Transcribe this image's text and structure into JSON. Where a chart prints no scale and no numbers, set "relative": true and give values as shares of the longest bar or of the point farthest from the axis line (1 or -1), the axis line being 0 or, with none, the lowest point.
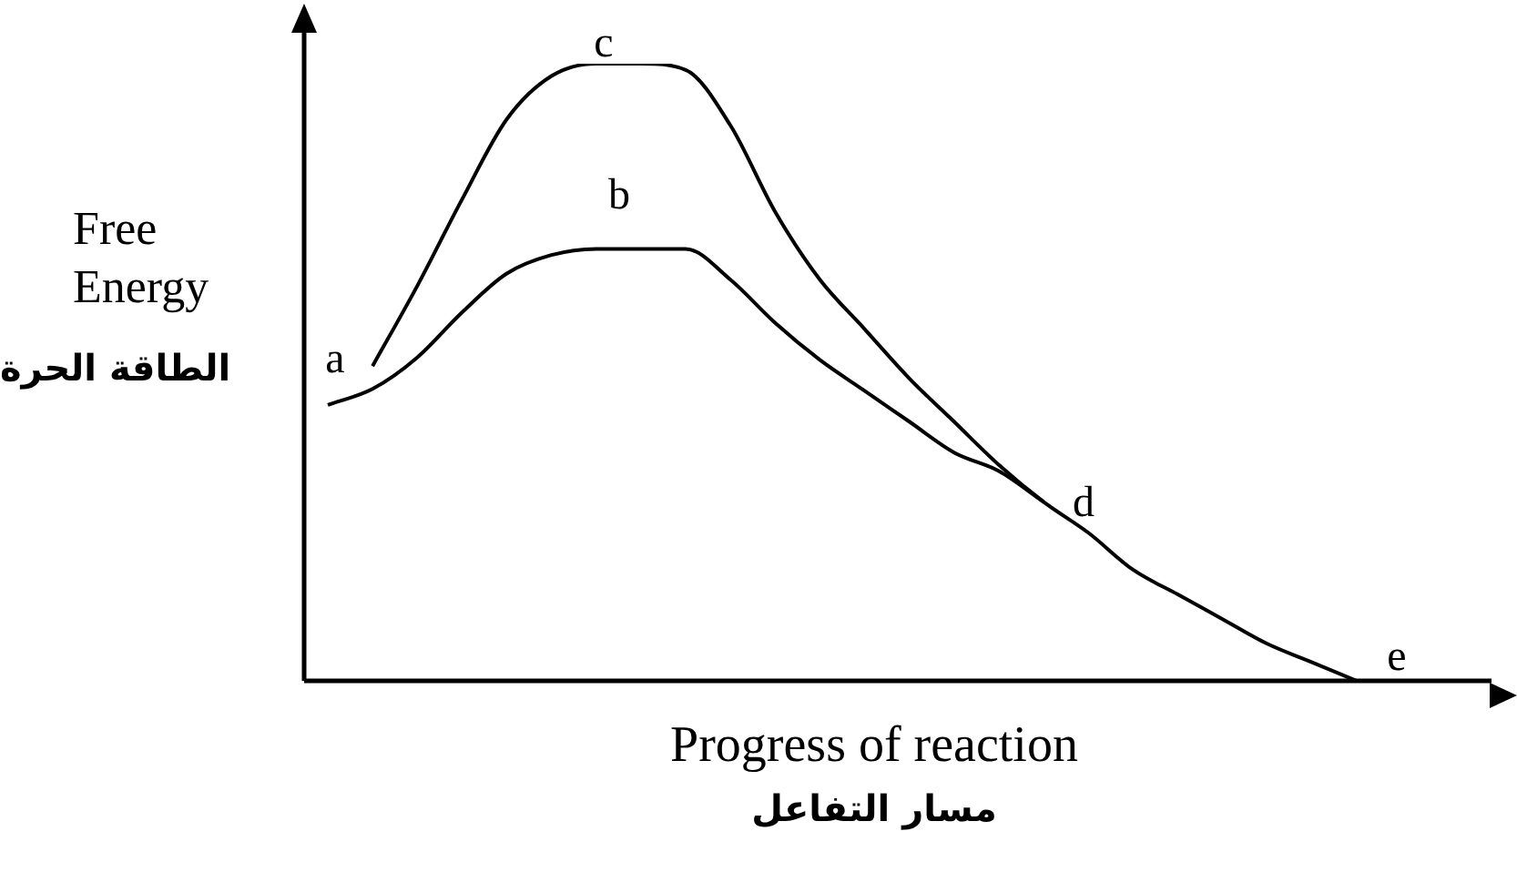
{
  "chart_data": {
    "type": "line",
    "relative": true,
    "xlabel": "Progress of reaction\nمسار التفاعل",
    "ylabel": "Free\nEnergy\nالطاقة الحرة",
    "categories": [
      null,
      null,
      null,
      null,
      null,
      null,
      null,
      null,
      null,
      null,
      null,
      null,
      null,
      null,
      null,
      null,
      null,
      null,
      null,
      null,
      null,
      null,
      null,
      null
    ],
    "series": [
      {
        "color": "#000000",
        "values": [
          null,
          0.51,
          0.64,
          0.78,
          0.91,
          0.98,
          1.0,
          1.0,
          0.99,
          0.9,
          0.76,
          0.65,
          0.57,
          0.49,
          0.42,
          0.35,
          0.29,
          0.24,
          0.18,
          0.14,
          0.1,
          0.06,
          0.03,
          0
        ]
      },
      {
        "color": "#000000",
        "values": [
          0.447,
          0.473,
          0.524,
          0.597,
          0.66,
          0.69,
          0.7,
          0.7,
          0.7,
          0.65,
          0.58,
          0.52,
          0.47,
          0.42,
          0.37,
          0.34,
          0.29,
          null,
          null,
          null,
          null,
          null,
          null,
          null
        ]
      }
    ],
    "annotations": [
      "a",
      "b",
      "c",
      "d",
      "e"
    ],
    "grid": false,
    "legend": false,
    "marker": "none",
    "line_style": "solid"
  }
}
